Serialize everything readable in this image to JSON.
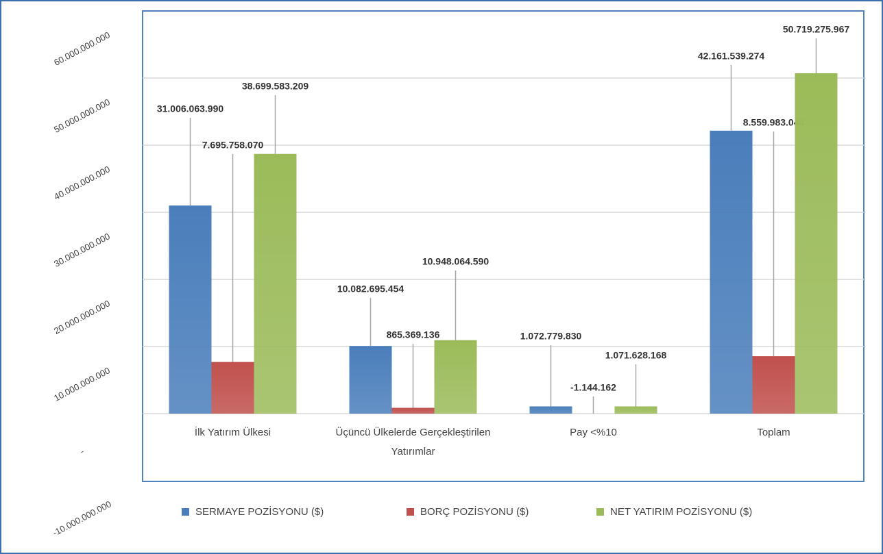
{
  "chart_data": {
    "type": "bar",
    "categories": [
      "İlk Yatırım Ülkesi",
      "Üçüncü Ülkelerde Gerçekleştirilen Yatırımlar",
      "Pay <%10",
      "Toplam"
    ],
    "series": [
      {
        "name": "SERMAYE POZİSYONU ($)",
        "color": "#4a7ebb",
        "values": [
          31006063990,
          10082695454,
          1072779830,
          42161539274
        ],
        "value_labels": [
          "31.006.063.990",
          "10.082.695.454",
          "1.072.779.830",
          "42.161.539.274"
        ]
      },
      {
        "name": "BORÇ POZİSYONU ($)",
        "color": "#c0504d",
        "values": [
          7695758070,
          865369136,
          -1144162,
          8559983044
        ],
        "value_labels": [
          "7.695.758.070",
          "865.369.136",
          "-1.144.162",
          "8.559.983.044"
        ]
      },
      {
        "name": "NET YATIRIM POZİSYONU ($)",
        "color": "#9bbb59",
        "values": [
          38699583209,
          10948064590,
          1071628168,
          50719275967
        ],
        "value_labels": [
          "38.699.583.209",
          "10.948.064.590",
          "1.071.628.168",
          "50.719.275.967"
        ]
      }
    ],
    "ylim": [
      -10000000000,
      60000000000
    ],
    "yticks": [
      {
        "value": -10000000000,
        "label": "-10.000.000.000"
      },
      {
        "value": 0,
        "label": "-"
      },
      {
        "value": 10000000000,
        "label": "10.000.000.000"
      },
      {
        "value": 20000000000,
        "label": "20.000.000.000"
      },
      {
        "value": 30000000000,
        "label": "30.000.000.000"
      },
      {
        "value": 40000000000,
        "label": "40.000.000.000"
      },
      {
        "value": 50000000000,
        "label": "50.000.000.000"
      },
      {
        "value": 60000000000,
        "label": "60.000.000.000"
      }
    ],
    "grid": true,
    "legend": "bottom"
  }
}
